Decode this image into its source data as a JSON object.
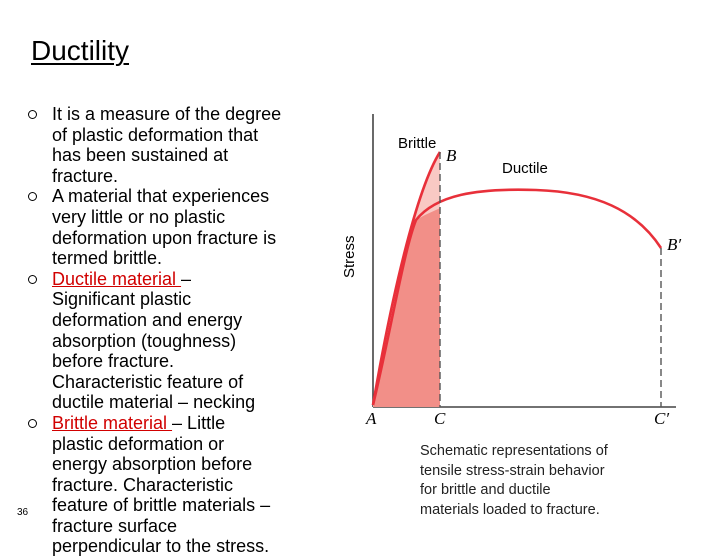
{
  "title": "Ductility",
  "bullets": [
    {
      "lines": [
        "It is a measure of the degree",
        "of plastic deformation that",
        "has been sustained at",
        "fracture."
      ]
    },
    {
      "lines": [
        "A material that experiences",
        "very little or no plastic",
        "deformation upon fracture is",
        "termed brittle."
      ]
    },
    {
      "term": "Ductile material ",
      "lines": [
        "–",
        "Significant plastic",
        "deformation and energy",
        "absorption (toughness)",
        "before fracture.",
        "Characteristic feature of",
        "ductile material – necking"
      ]
    },
    {
      "term": "Brittle material ",
      "lines": [
        "– Little",
        "plastic deformation or",
        "energy absorption before",
        "fracture. Characteristic",
        "feature of brittle materials –",
        "fracture surface",
        "perpendicular to the stress."
      ]
    }
  ],
  "slide_number": "36",
  "figure": {
    "y_axis_label": "Stress",
    "curve_labels": {
      "brittle": "Brittle",
      "ductile": "Ductile"
    },
    "points": {
      "A": "A",
      "B": "B",
      "B_prime": "B′",
      "C": "C",
      "C_prime": "C′"
    },
    "colors": {
      "curve": "#e8303a",
      "brittle_fill": "#f9c9c4",
      "energy_fill": "#f28f88"
    }
  },
  "caption": [
    "Schematic representations of",
    "tensile stress-strain behavior",
    "for brittle and ductile",
    "materials loaded to fracture."
  ]
}
